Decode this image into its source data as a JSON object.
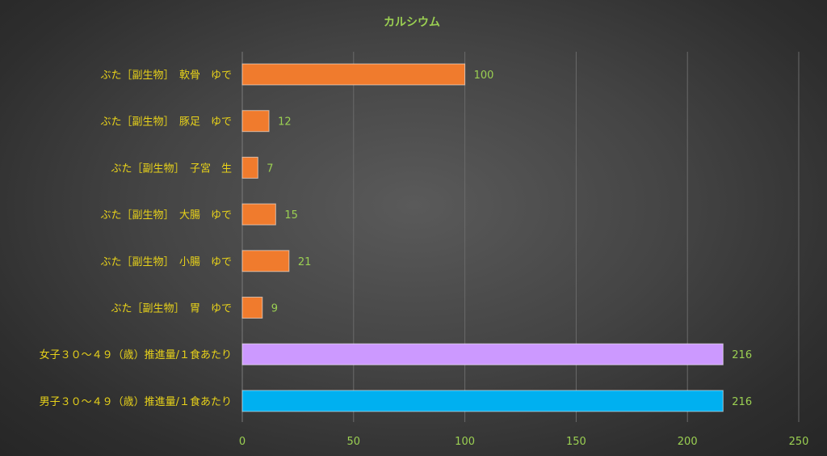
{
  "chart_data": {
    "type": "bar",
    "orientation": "horizontal",
    "title": "カルシウム",
    "categories": [
      "ぶた［副生物］　軟骨　ゆで",
      "ぶた［副生物］　豚足　ゆで",
      "ぶた［副生物］　子宮　生",
      "ぶた［副生物］　大腸　ゆで",
      "ぶた［副生物］　小腸　ゆで",
      "ぶた［副生物］　胃　ゆで",
      "女子３０～４９（歳）推進量/１食あたり",
      "男子３０～４９（歳）推進量/１食あたり"
    ],
    "values": [
      100,
      12,
      7,
      15,
      21,
      9,
      216,
      216
    ],
    "value_labels": [
      "100",
      "12",
      "7",
      "15",
      "21",
      "9",
      "216",
      "216"
    ],
    "bar_colors": [
      "#f07b2d",
      "#f07b2d",
      "#f07b2d",
      "#f07b2d",
      "#f07b2d",
      "#f07b2d",
      "#cc99ff",
      "#00b0f0"
    ],
    "xlim": [
      0,
      250
    ],
    "xticks": [
      "0",
      "50",
      "100",
      "150",
      "200",
      "250"
    ],
    "grid": "vertical",
    "legend": "none",
    "colors": {
      "title": "#9bd052",
      "category_label": "#e8d21a",
      "value_label": "#9bd052",
      "tick_label": "#9bd052",
      "grid": "#6a6a6a"
    }
  }
}
